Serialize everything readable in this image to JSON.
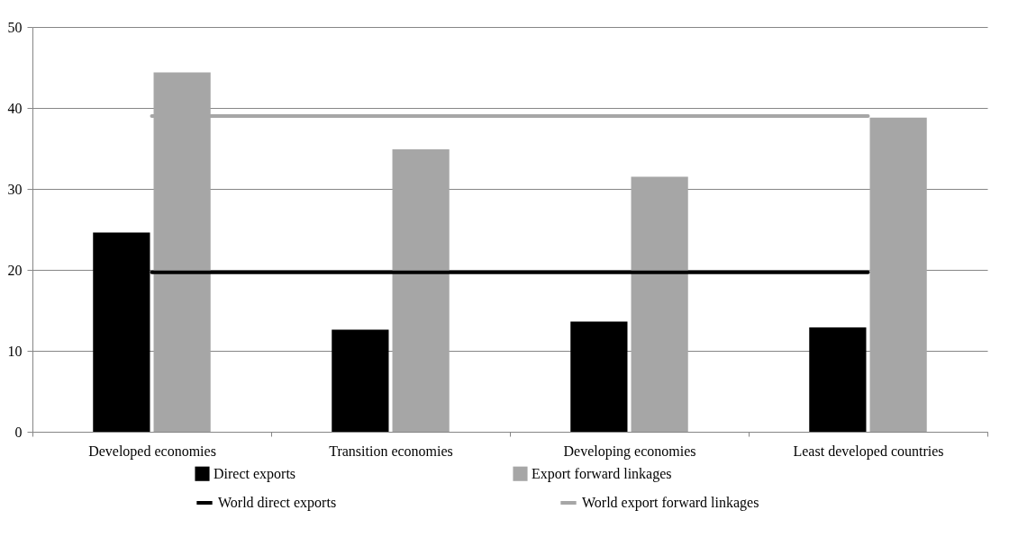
{
  "chart_data": {
    "type": "bar",
    "categories": [
      "Developed economies",
      "Transition economies",
      "Developing economies",
      "Least developed countries"
    ],
    "series": [
      {
        "name": "Direct exports",
        "color": "#000000",
        "values": [
          24.6,
          12.6,
          13.6,
          12.9
        ]
      },
      {
        "name": "Export forward linkages",
        "color": "#a6a6a6",
        "values": [
          44.4,
          34.9,
          31.5,
          38.8
        ]
      },
      {
        "name": "World direct exports",
        "type": "line",
        "color": "#000000",
        "values": [
          19.7,
          19.7,
          19.7,
          19.7
        ]
      },
      {
        "name": "World export forward linkages",
        "type": "line",
        "color": "#a6a6a6",
        "values": [
          39.0,
          39.0,
          39.0,
          39.0
        ]
      }
    ],
    "ylim": [
      0,
      50
    ],
    "yticks": [
      0,
      10,
      20,
      30,
      40,
      50
    ],
    "grid": "y",
    "legend": "bottom"
  }
}
